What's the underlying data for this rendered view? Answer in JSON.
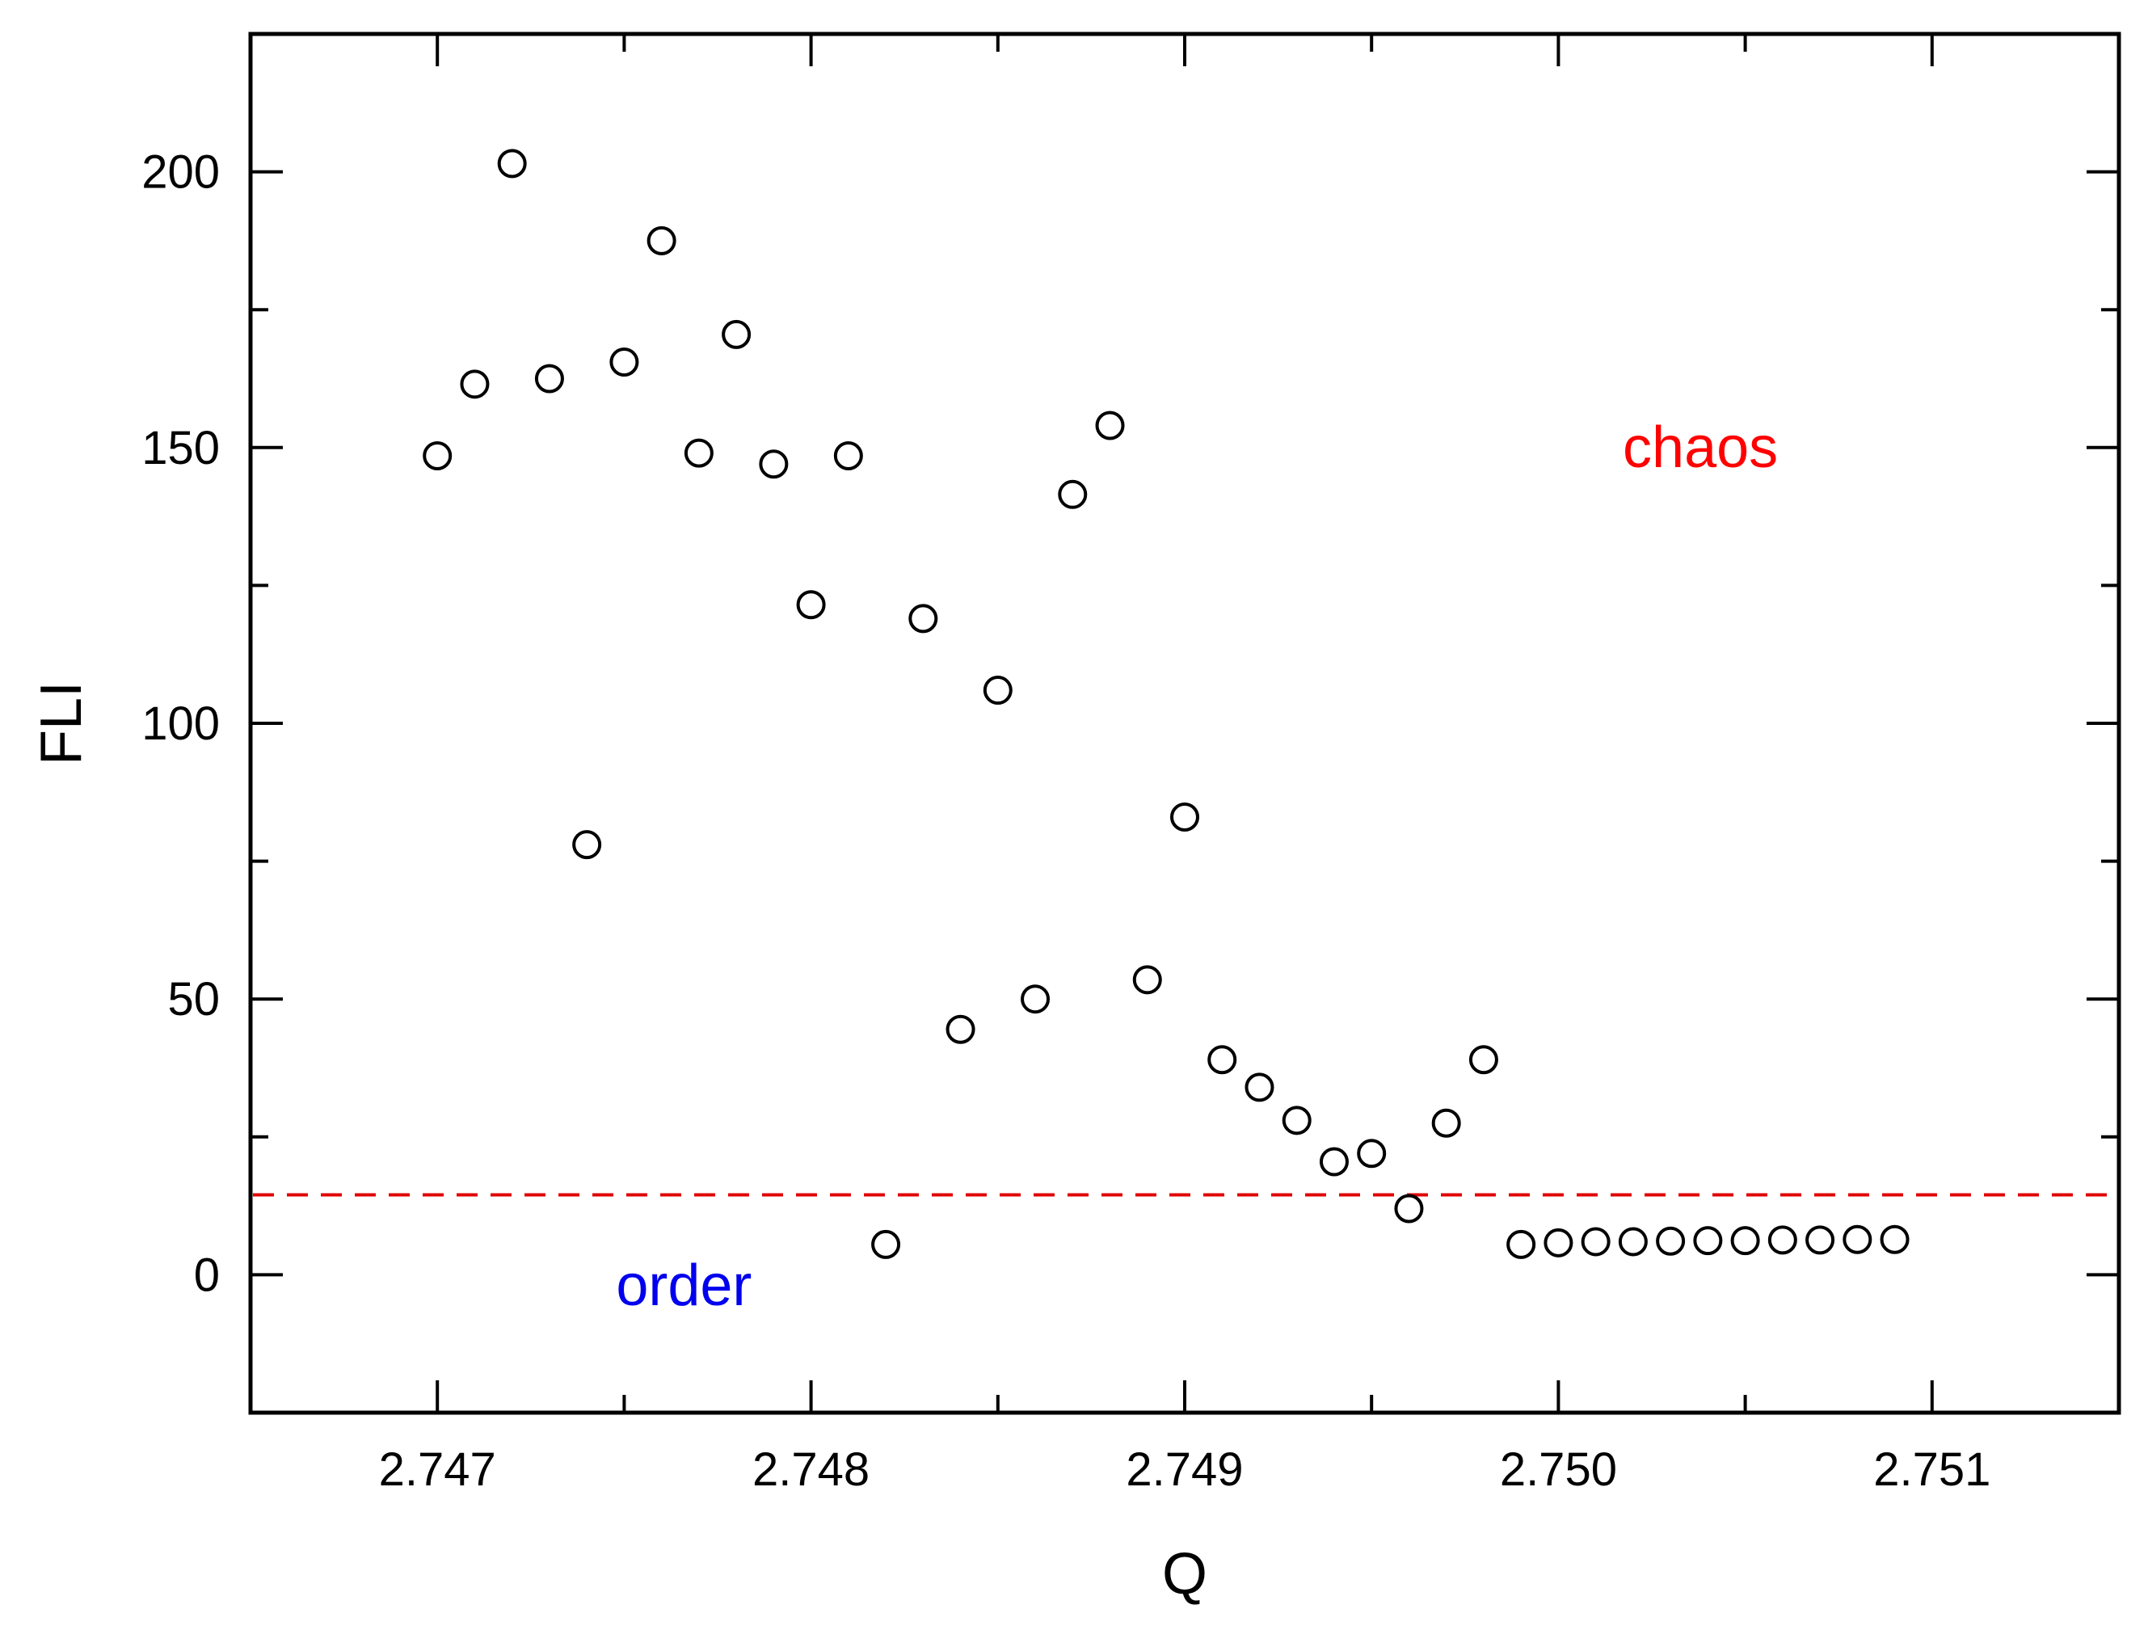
{
  "chart_data": {
    "type": "scatter",
    "title": "",
    "xlabel": "Q",
    "ylabel": "FLI",
    "xlim": [
      2.7465,
      2.7515
    ],
    "ylim": [
      -25,
      225
    ],
    "xticks": [
      2.747,
      2.748,
      2.749,
      2.75,
      2.751
    ],
    "xtick_labels": [
      "2.747",
      "2.748",
      "2.749",
      "2.750",
      "2.751"
    ],
    "yticks": [
      0,
      50,
      100,
      150,
      200
    ],
    "ytick_labels": [
      "0",
      "50",
      "100",
      "150",
      "200"
    ],
    "grid": false,
    "legend": "none",
    "marker": "open-circle",
    "threshold": {
      "y": 14.5,
      "color": "#e00000",
      "style": "dashed"
    },
    "annotations": [
      {
        "text": "chaos",
        "x": 2.75038,
        "y": 150,
        "color": "#ff0000"
      },
      {
        "text": "order",
        "x": 2.74766,
        "y": -2,
        "color": "#0000ee"
      }
    ],
    "series": [
      {
        "x": [
          2.747,
          2.7471,
          2.7472,
          2.7473,
          2.7474,
          2.7475,
          2.7476,
          2.7477,
          2.7478,
          2.7479,
          2.748,
          2.7481,
          2.7482,
          2.7483,
          2.7484,
          2.7485,
          2.7486,
          2.7487,
          2.7488,
          2.7489,
          2.749,
          2.7491,
          2.7492,
          2.7493,
          2.7494,
          2.7495,
          2.7496,
          2.7497,
          2.7498,
          2.7499,
          2.75,
          2.7501,
          2.7502,
          2.7503,
          2.7504,
          2.7505,
          2.7506,
          2.7507,
          2.7508,
          2.7509
        ],
        "y": [
          148.5,
          161.5,
          201.5,
          162.5,
          78,
          165.5,
          187.5,
          149,
          170.5,
          147,
          121.5,
          148.5,
          5.5,
          119,
          44.5,
          106,
          50,
          141.5,
          154,
          53.5,
          83,
          39,
          34,
          28,
          20.5,
          22,
          12,
          27.5,
          39,
          5.5,
          5.8,
          6,
          6,
          6.1,
          6.2,
          6.2,
          6.3,
          6.3,
          6.4,
          6.4
        ]
      }
    ]
  }
}
